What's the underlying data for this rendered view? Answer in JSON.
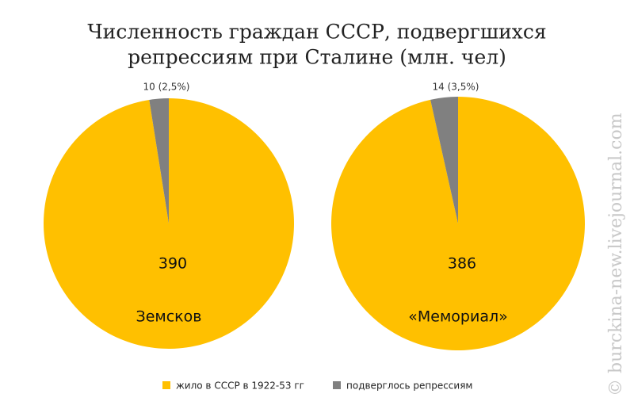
{
  "title": [
    "Численность граждан СССР, подвергшихся",
    "репрессиям при Сталине (млн. чел)"
  ],
  "watermark": "© burckina-new.livejournal.com",
  "chart_data": [
    {
      "type": "pie",
      "label": "Земсков",
      "categories": [
        "жило в СССР в 1922-53 гг",
        "подверглось репрессиям"
      ],
      "colors": [
        "#ffc000",
        "#808080"
      ],
      "values": [
        390,
        10
      ],
      "value_labels": [
        "390",
        "10 (2,5%)"
      ]
    },
    {
      "type": "pie",
      "label": "«Мемориал»",
      "categories": [
        "жило в СССР в 1922-53 гг",
        "подверглось репрессиям"
      ],
      "colors": [
        "#ffc000",
        "#808080"
      ],
      "values": [
        386,
        14
      ],
      "value_labels": [
        "386",
        "14 (3,5%)"
      ]
    }
  ]
}
